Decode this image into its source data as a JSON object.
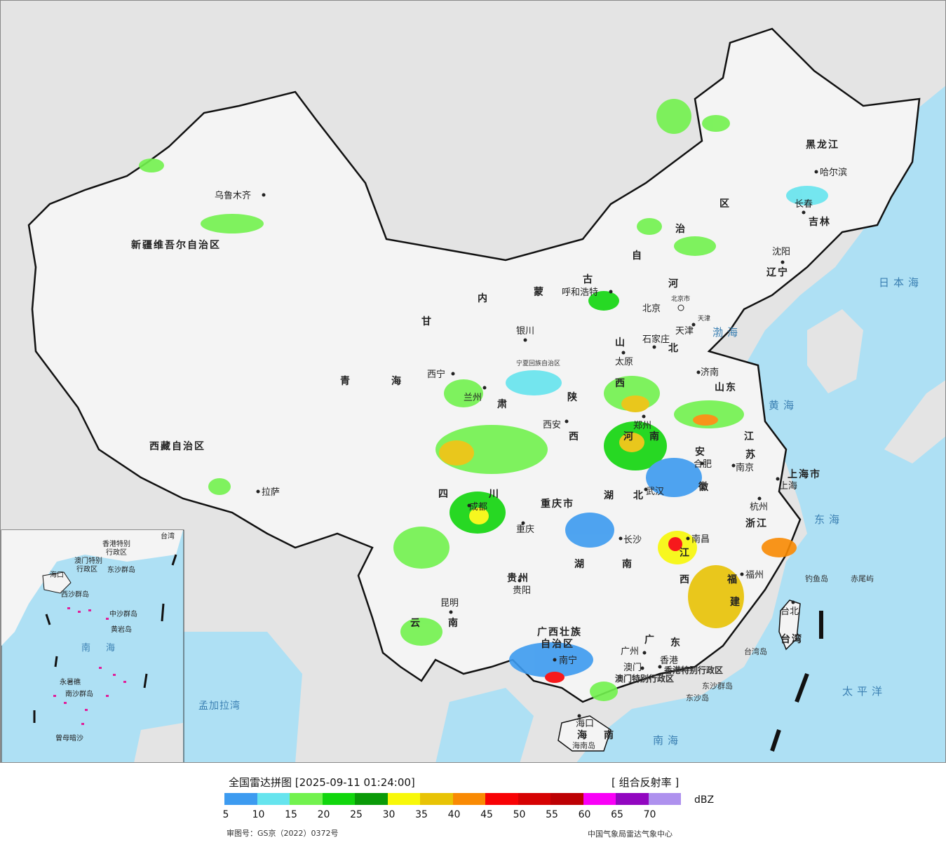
{
  "map": {
    "provinces": [
      {
        "name": "新疆维吾尔自治区",
        "key": "xinjiang"
      },
      {
        "name": "西藏自治区",
        "key": "xizang"
      },
      {
        "name": "青",
        "key": "qinghai1"
      },
      {
        "name": "海",
        "key": "qinghai2"
      },
      {
        "name": "甘",
        "key": "gansu1"
      },
      {
        "name": "肃",
        "key": "gansu2"
      },
      {
        "name": "内",
        "key": "nm1"
      },
      {
        "name": "蒙",
        "key": "nm2"
      },
      {
        "name": "古",
        "key": "nm3"
      },
      {
        "name": "自",
        "key": "nm4"
      },
      {
        "name": "治",
        "key": "nm5"
      },
      {
        "name": "区",
        "key": "nm6"
      },
      {
        "name": "黑龙江",
        "key": "heilongjiang"
      },
      {
        "name": "吉林",
        "key": "jilin"
      },
      {
        "name": "辽宁",
        "key": "liaoning"
      },
      {
        "name": "河",
        "key": "hebei1"
      },
      {
        "name": "北",
        "key": "hebei2"
      },
      {
        "name": "山",
        "key": "shanxi1"
      },
      {
        "name": "西",
        "key": "shanxi2"
      },
      {
        "name": "陕",
        "key": "shaanxi1"
      },
      {
        "name": "西",
        "key": "shaanxi2"
      },
      {
        "name": "山东",
        "key": "shandong"
      },
      {
        "name": "河",
        "key": "henan1"
      },
      {
        "name": "南",
        "key": "henan2"
      },
      {
        "name": "江",
        "key": "jiangsu1"
      },
      {
        "name": "苏",
        "key": "jiangsu2"
      },
      {
        "name": "安",
        "key": "anhui1"
      },
      {
        "name": "徽",
        "key": "anhui2"
      },
      {
        "name": "上海市",
        "key": "shanghai"
      },
      {
        "name": "浙江",
        "key": "zhejiang"
      },
      {
        "name": "湖",
        "key": "hubei1"
      },
      {
        "name": "北",
        "key": "hubei2"
      },
      {
        "name": "四",
        "key": "sichuan1"
      },
      {
        "name": "川",
        "key": "sichuan2"
      },
      {
        "name": "重庆市",
        "key": "chongqing"
      },
      {
        "name": "湖",
        "key": "hunan1"
      },
      {
        "name": "南",
        "key": "hunan2"
      },
      {
        "name": "江",
        "key": "jiangxi1"
      },
      {
        "name": "西",
        "key": "jiangxi2"
      },
      {
        "name": "福",
        "key": "fujian1"
      },
      {
        "name": "建",
        "key": "fujian2"
      },
      {
        "name": "贵州",
        "key": "guizhou"
      },
      {
        "name": "云",
        "key": "yunnan1"
      },
      {
        "name": "南",
        "key": "yunnan2"
      },
      {
        "name": "广西壮族",
        "key": "guangxi1"
      },
      {
        "name": "自治区",
        "key": "guangxi2"
      },
      {
        "name": "广",
        "key": "guangdong1"
      },
      {
        "name": "东",
        "key": "guangdong2"
      },
      {
        "name": "海",
        "key": "hainan1"
      },
      {
        "name": "南",
        "key": "hainan2"
      },
      {
        "name": "台湾",
        "key": "taiwan"
      },
      {
        "name": "宁夏回族自治区",
        "key": "ningxia"
      },
      {
        "name": "香港特别行政区",
        "key": "hk"
      },
      {
        "name": "澳门特别行政区",
        "key": "macau"
      }
    ],
    "cities": [
      {
        "name": "乌鲁木齐",
        "key": "urumqi"
      },
      {
        "name": "拉萨",
        "key": "lhasa"
      },
      {
        "name": "西宁",
        "key": "xining"
      },
      {
        "name": "兰州",
        "key": "lanzhou"
      },
      {
        "name": "银川",
        "key": "yinchuan"
      },
      {
        "name": "呼和浩特",
        "key": "hohhot"
      },
      {
        "name": "哈尔滨",
        "key": "harbin"
      },
      {
        "name": "长春",
        "key": "changchun"
      },
      {
        "name": "沈阳",
        "key": "shenyang"
      },
      {
        "name": "北京",
        "key": "beijing"
      },
      {
        "name": "北京市",
        "key": "beijing2"
      },
      {
        "name": "天津",
        "key": "tianjin"
      },
      {
        "name": "天津",
        "key": "tianjin2"
      },
      {
        "name": "石家庄",
        "key": "shijiazhuang"
      },
      {
        "name": "太原",
        "key": "taiyuan"
      },
      {
        "name": "济南",
        "key": "jinan"
      },
      {
        "name": "西安",
        "key": "xian"
      },
      {
        "name": "郑州",
        "key": "zhengzhou"
      },
      {
        "name": "合肥",
        "key": "hefei"
      },
      {
        "name": "南京",
        "key": "nanjing"
      },
      {
        "name": "上海",
        "key": "shanghai_c"
      },
      {
        "name": "杭州",
        "key": "hangzhou"
      },
      {
        "name": "武汉",
        "key": "wuhan"
      },
      {
        "name": "成都",
        "key": "chengdu"
      },
      {
        "name": "重庆",
        "key": "chongqing_c"
      },
      {
        "name": "长沙",
        "key": "changsha"
      },
      {
        "name": "南昌",
        "key": "nanchang"
      },
      {
        "name": "福州",
        "key": "fuzhou"
      },
      {
        "name": "贵阳",
        "key": "guiyang"
      },
      {
        "name": "昆明",
        "key": "kunming"
      },
      {
        "name": "南宁",
        "key": "nanning"
      },
      {
        "name": "广州",
        "key": "guangzhou"
      },
      {
        "name": "香港",
        "key": "hongkong"
      },
      {
        "name": "澳门",
        "key": "macau_c"
      },
      {
        "name": "海口",
        "key": "haikou"
      },
      {
        "name": "台北",
        "key": "taipei"
      }
    ],
    "seas": [
      {
        "name": "日本海",
        "key": "sea_japan"
      },
      {
        "name": "渤海",
        "key": "sea_bohai"
      },
      {
        "name": "黄海",
        "key": "sea_yellow"
      },
      {
        "name": "东海",
        "key": "sea_east"
      },
      {
        "name": "太平洋",
        "key": "sea_pacific"
      },
      {
        "name": "南海",
        "key": "sea_south"
      },
      {
        "name": "孟加拉湾",
        "key": "sea_bengal"
      }
    ],
    "islands": [
      {
        "name": "钓鱼岛",
        "key": "diaoyu"
      },
      {
        "name": "赤尾屿",
        "key": "chiwei"
      },
      {
        "name": "台湾岛",
        "key": "taiwan_island"
      },
      {
        "name": "东沙群岛",
        "key": "dongsha"
      },
      {
        "name": "东沙岛",
        "key": "dongsha_island"
      },
      {
        "name": "海南岛",
        "key": "hainan_island"
      }
    ],
    "inset_labels": [
      {
        "name": "台湾",
        "key": "in_taiwan"
      },
      {
        "name": "香港特别",
        "key": "in_hk1"
      },
      {
        "name": "行政区",
        "key": "in_hk2"
      },
      {
        "name": "澳门特别",
        "key": "in_mo1"
      },
      {
        "name": "行政区",
        "key": "in_mo2"
      },
      {
        "name": "东沙群岛",
        "key": "in_dongsha"
      },
      {
        "name": "海口",
        "key": "in_haikou"
      },
      {
        "name": "西沙群岛",
        "key": "in_xisha"
      },
      {
        "name": "中沙群岛",
        "key": "in_zhongsha"
      },
      {
        "name": "黄岩岛",
        "key": "in_huangyan"
      },
      {
        "name": "南",
        "key": "in_nan"
      },
      {
        "name": "海",
        "key": "in_hai"
      },
      {
        "name": "永暑礁",
        "key": "in_yongshu"
      },
      {
        "name": "南沙群岛",
        "key": "in_nansha"
      },
      {
        "name": "曾母暗沙",
        "key": "in_zengmu"
      }
    ]
  },
  "legend": {
    "title": "全国雷达拼图 [2025-09-11 01:24:00]",
    "product": "[ 组合反射率 ]",
    "unit": "dBZ",
    "scale_colors": [
      "#3d9bf0",
      "#66e4ee",
      "#72f24e",
      "#11d60d",
      "#0a9a08",
      "#f8f809",
      "#e8c305",
      "#f98a03",
      "#f80205",
      "#d60203",
      "#bd0104",
      "#f900f7",
      "#9207c0",
      "#ae91ee"
    ],
    "scale_ticks": [
      "5",
      "10",
      "15",
      "20",
      "25",
      "30",
      "35",
      "40",
      "45",
      "50",
      "55",
      "60",
      "65",
      "70"
    ],
    "review_number": "审图号：GS京（2022）0372号",
    "organization": "中国气象局雷达气象中心"
  },
  "colors": {
    "land": "#f4f4f4",
    "foreign": "#e4e4e4",
    "sea": "#aee0f4",
    "border": "#111111"
  }
}
